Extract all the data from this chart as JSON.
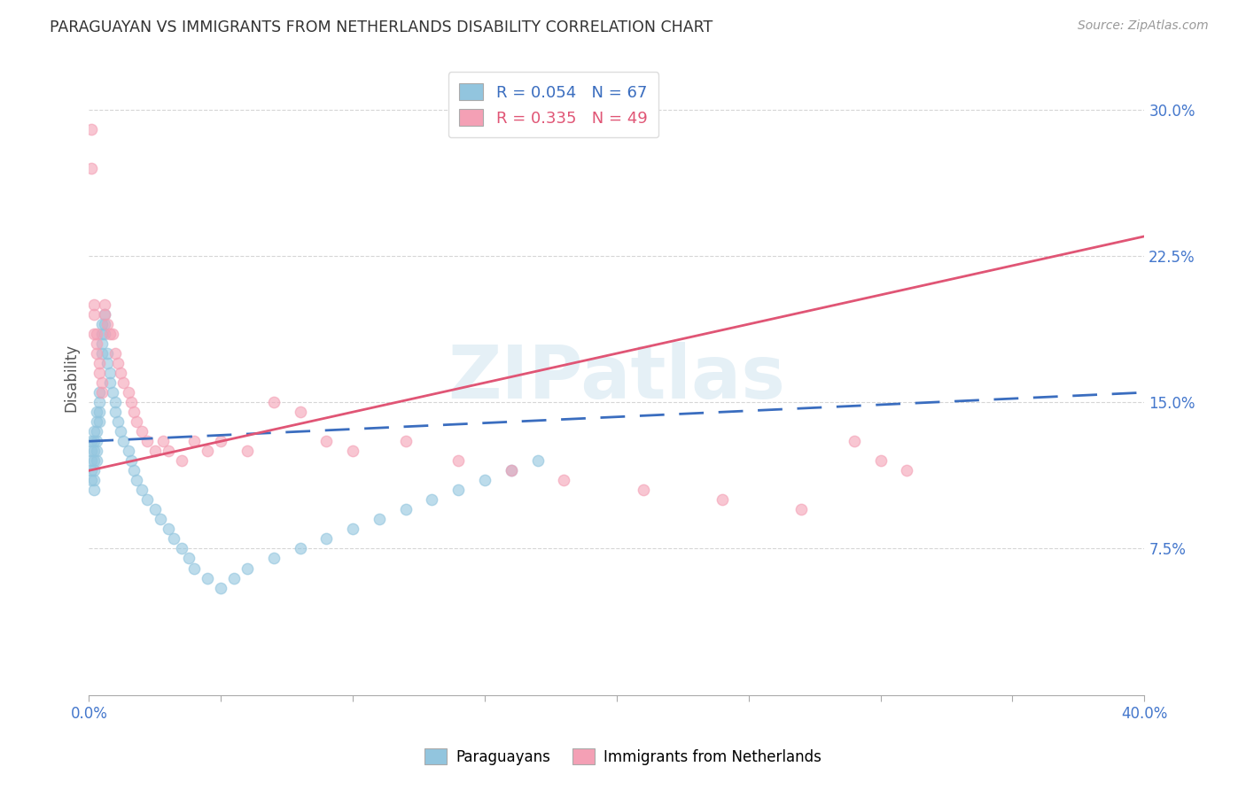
{
  "title": "PARAGUAYAN VS IMMIGRANTS FROM NETHERLANDS DISABILITY CORRELATION CHART",
  "source": "Source: ZipAtlas.com",
  "ylabel": "Disability",
  "ytick_labels": [
    "7.5%",
    "15.0%",
    "22.5%",
    "30.0%"
  ],
  "ytick_values": [
    0.075,
    0.15,
    0.225,
    0.3
  ],
  "xlim": [
    0.0,
    0.4
  ],
  "ylim": [
    0.0,
    0.325
  ],
  "paraguayan_R": 0.054,
  "paraguayan_N": 67,
  "netherlands_R": 0.335,
  "netherlands_N": 49,
  "blue_color": "#92c5de",
  "pink_color": "#f4a0b5",
  "blue_line_color": "#3a6dbf",
  "pink_line_color": "#e05575",
  "legend_label_blue": "Paraguayans",
  "legend_label_pink": "Immigrants from Netherlands",
  "watermark": "ZIPatlas",
  "par_x": [
    0.001,
    0.001,
    0.001,
    0.001,
    0.001,
    0.002,
    0.002,
    0.002,
    0.002,
    0.002,
    0.002,
    0.002,
    0.003,
    0.003,
    0.003,
    0.003,
    0.003,
    0.003,
    0.004,
    0.004,
    0.004,
    0.004,
    0.005,
    0.005,
    0.005,
    0.005,
    0.006,
    0.006,
    0.006,
    0.007,
    0.007,
    0.008,
    0.008,
    0.009,
    0.01,
    0.01,
    0.011,
    0.012,
    0.013,
    0.015,
    0.016,
    0.017,
    0.018,
    0.02,
    0.022,
    0.025,
    0.027,
    0.03,
    0.032,
    0.035,
    0.038,
    0.04,
    0.045,
    0.05,
    0.055,
    0.06,
    0.07,
    0.08,
    0.09,
    0.1,
    0.11,
    0.12,
    0.13,
    0.14,
    0.15,
    0.16,
    0.17
  ],
  "par_y": [
    0.13,
    0.125,
    0.12,
    0.115,
    0.11,
    0.135,
    0.13,
    0.125,
    0.12,
    0.115,
    0.11,
    0.105,
    0.145,
    0.14,
    0.135,
    0.13,
    0.125,
    0.12,
    0.155,
    0.15,
    0.145,
    0.14,
    0.19,
    0.185,
    0.18,
    0.175,
    0.195,
    0.19,
    0.185,
    0.175,
    0.17,
    0.165,
    0.16,
    0.155,
    0.15,
    0.145,
    0.14,
    0.135,
    0.13,
    0.125,
    0.12,
    0.115,
    0.11,
    0.105,
    0.1,
    0.095,
    0.09,
    0.085,
    0.08,
    0.075,
    0.07,
    0.065,
    0.06,
    0.055,
    0.06,
    0.065,
    0.07,
    0.075,
    0.08,
    0.085,
    0.09,
    0.095,
    0.1,
    0.105,
    0.11,
    0.115,
    0.12
  ],
  "neth_x": [
    0.001,
    0.001,
    0.002,
    0.002,
    0.002,
    0.003,
    0.003,
    0.003,
    0.004,
    0.004,
    0.005,
    0.005,
    0.006,
    0.006,
    0.007,
    0.008,
    0.009,
    0.01,
    0.011,
    0.012,
    0.013,
    0.015,
    0.016,
    0.017,
    0.018,
    0.02,
    0.022,
    0.025,
    0.028,
    0.03,
    0.035,
    0.04,
    0.045,
    0.05,
    0.06,
    0.07,
    0.08,
    0.09,
    0.1,
    0.12,
    0.14,
    0.16,
    0.18,
    0.21,
    0.24,
    0.27,
    0.29,
    0.3,
    0.31
  ],
  "neth_y": [
    0.29,
    0.27,
    0.2,
    0.195,
    0.185,
    0.185,
    0.18,
    0.175,
    0.17,
    0.165,
    0.16,
    0.155,
    0.2,
    0.195,
    0.19,
    0.185,
    0.185,
    0.175,
    0.17,
    0.165,
    0.16,
    0.155,
    0.15,
    0.145,
    0.14,
    0.135,
    0.13,
    0.125,
    0.13,
    0.125,
    0.12,
    0.13,
    0.125,
    0.13,
    0.125,
    0.15,
    0.145,
    0.13,
    0.125,
    0.13,
    0.12,
    0.115,
    0.11,
    0.105,
    0.1,
    0.095,
    0.13,
    0.12,
    0.115
  ],
  "par_trendline_x": [
    0.0,
    0.4
  ],
  "par_trendline_y": [
    0.13,
    0.155
  ],
  "neth_trendline_x": [
    0.0,
    0.4
  ],
  "neth_trendline_y": [
    0.115,
    0.235
  ]
}
